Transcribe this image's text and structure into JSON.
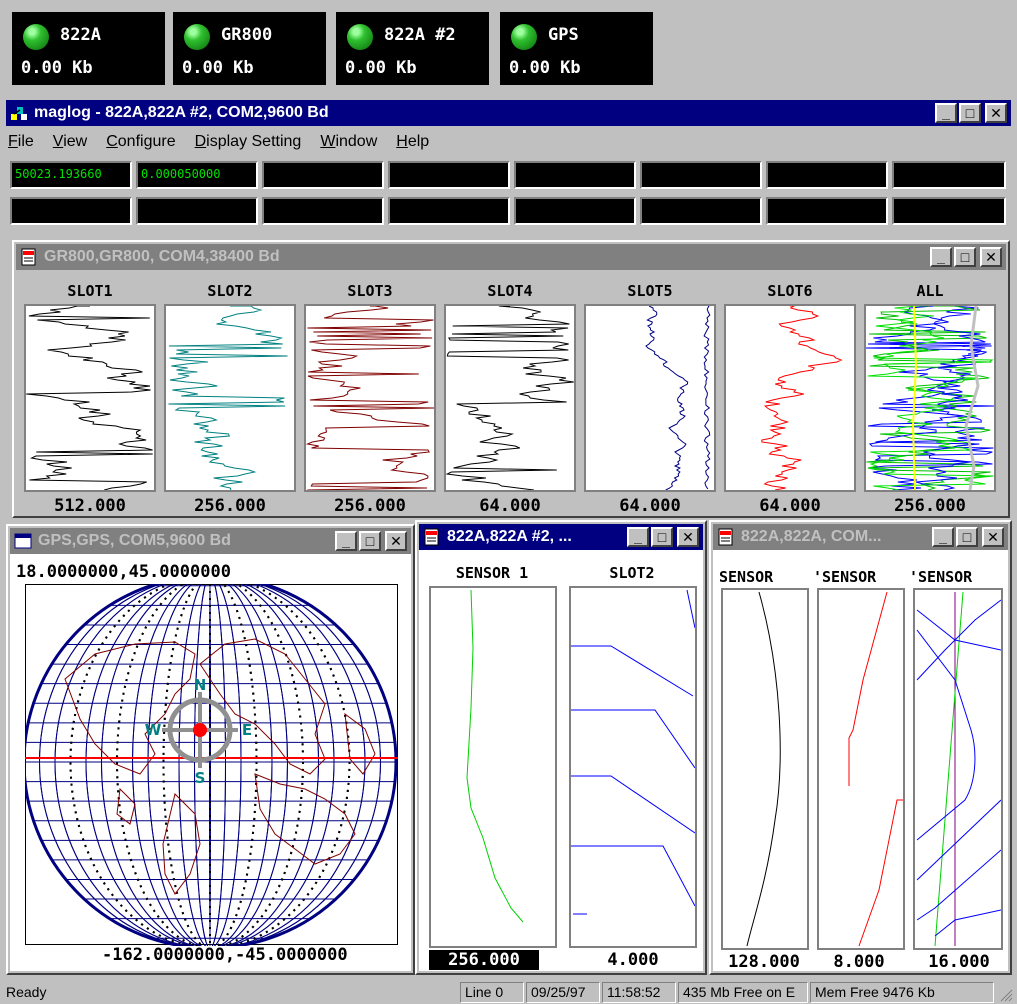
{
  "devices": [
    {
      "name": "822A",
      "rate": "0.00 Kb"
    },
    {
      "name": "GR800",
      "rate": "0.00 Kb"
    },
    {
      "name": "822A #2",
      "rate": "0.00 Kb"
    },
    {
      "name": "GPS",
      "rate": "0.00 Kb"
    }
  ],
  "main_window": {
    "title": "maglog - 822A,822A #2, COM2,9600 Bd",
    "menu": [
      "File",
      "View",
      "Configure",
      "Display Setting",
      "Window",
      "Help"
    ],
    "readouts": [
      "50023.193660",
      "0.000050000"
    ]
  },
  "gr800_window": {
    "title": "GR800,GR800, COM4,38400 Bd",
    "channels": [
      {
        "label": "SLOT1",
        "value": "512.000",
        "color": "#000000"
      },
      {
        "label": "SLOT2",
        "value": "256.000",
        "color": "#008080"
      },
      {
        "label": "SLOT3",
        "value": "256.000",
        "color": "#800000"
      },
      {
        "label": "SLOT4",
        "value": "64.000",
        "color": "#000000"
      },
      {
        "label": "SLOT5",
        "value": "64.000",
        "color": "#000080"
      },
      {
        "label": "SLOT6",
        "value": "64.000",
        "color": "#ff0000"
      },
      {
        "label": "ALL",
        "value": "256.000",
        "color": "#0000ff"
      }
    ]
  },
  "gps_window": {
    "title": "GPS,GPS, COM5,9600 Bd",
    "top_coords": "18.0000000,45.0000000",
    "bottom_coords": "-162.0000000,-45.0000000",
    "compass": {
      "n": "N",
      "s": "S",
      "e": "E",
      "w": "W"
    }
  },
  "w822a2_window": {
    "title": "822A,822A #2, ...",
    "channels": [
      {
        "label": "SENSOR 1",
        "value": "256.000"
      },
      {
        "label": "SLOT2",
        "value": "4.000"
      }
    ]
  },
  "w822a_window": {
    "title": "822A,822A, COM...",
    "channels": [
      {
        "label": "SENSOR",
        "value": "128.000"
      },
      {
        "label": "'SENSOR",
        "value": "8.000"
      },
      {
        "label": "'SENSOR",
        "value": "16.000"
      }
    ]
  },
  "status_bar": {
    "message": "Ready",
    "line": "Line 0",
    "date": "09/25/97",
    "time": "11:58:52",
    "disk": "435 Mb Free on E",
    "mem": "Mem Free 9476 Kb"
  },
  "colors": {
    "active_title": "#000080",
    "inactive_title": "#808080",
    "readout_text": "#00e000"
  },
  "icons": [
    "green-led-icon",
    "app-icon",
    "doc-icon",
    "window-icon",
    "minimize-icon",
    "maximize-icon",
    "close-icon",
    "size-grip-icon"
  ]
}
